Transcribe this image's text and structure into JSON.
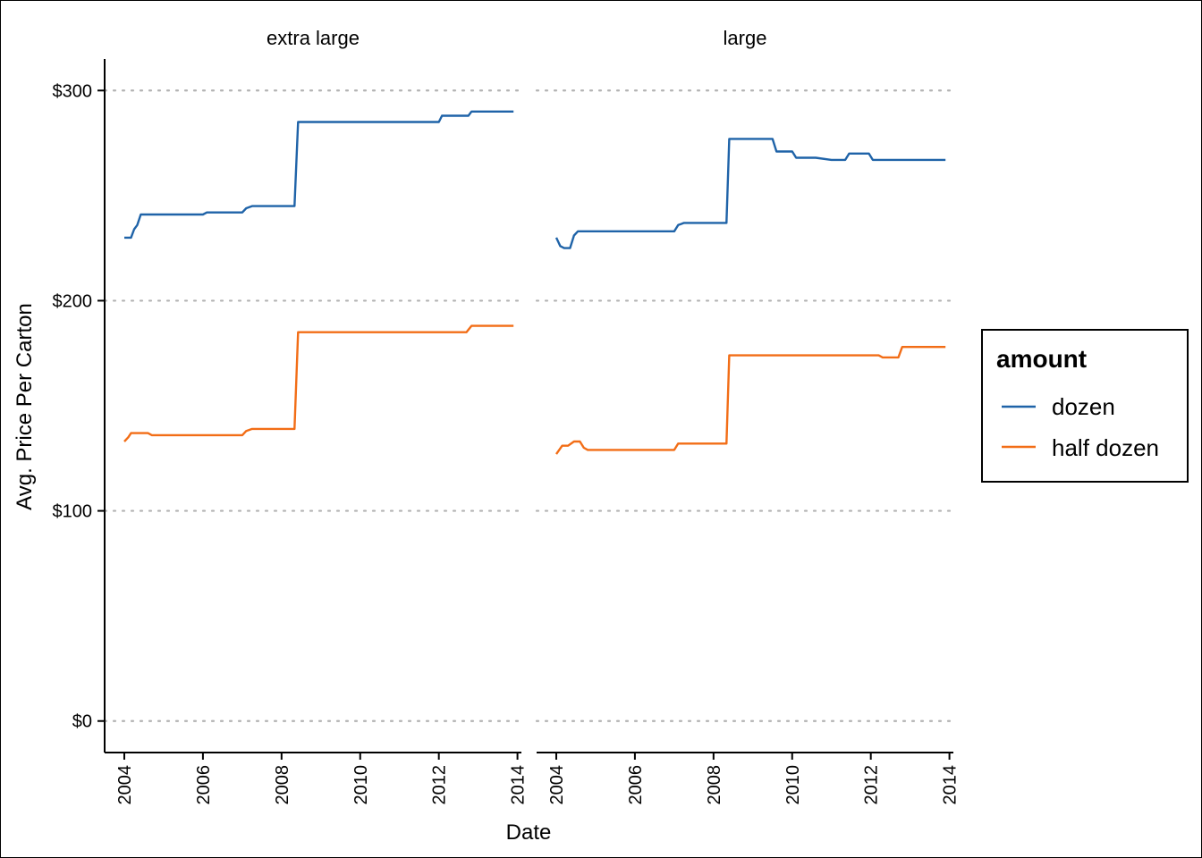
{
  "chart_data": {
    "type": "line",
    "xlabel": "Date",
    "ylabel": "Avg. Price Per Carton",
    "ylim": [
      -15,
      315
    ],
    "y_ticks": [
      {
        "value": 0,
        "label": "$0"
      },
      {
        "value": 100,
        "label": "$100"
      },
      {
        "value": 200,
        "label": "$200"
      },
      {
        "value": 300,
        "label": "$300"
      }
    ],
    "xlim": [
      2003.5,
      2014.1
    ],
    "x_ticks": [
      {
        "value": 2004,
        "label": "2004"
      },
      {
        "value": 2006,
        "label": "2006"
      },
      {
        "value": 2008,
        "label": "2008"
      },
      {
        "value": 2010,
        "label": "2010"
      },
      {
        "value": 2012,
        "label": "2012"
      },
      {
        "value": 2014,
        "label": "2014"
      }
    ],
    "grid": "horizontal dotted",
    "legend": {
      "title": "amount",
      "position": "right",
      "entries": [
        {
          "name": "dozen",
          "color": "#1f63a8"
        },
        {
          "name": "half dozen",
          "color": "#f26d16"
        }
      ]
    },
    "panels": [
      {
        "label": "extra large",
        "series": [
          {
            "name": "dozen",
            "color": "#1f63a8",
            "x": [
              2004.0,
              2004.17,
              2004.25,
              2004.33,
              2004.42,
              2005.0,
              2006.0,
              2006.1,
              2007.0,
              2007.1,
              2007.25,
              2008.0,
              2008.33,
              2008.42,
              2009.0,
              2010.0,
              2011.0,
              2012.0,
              2012.08,
              2012.2,
              2012.75,
              2012.83,
              2013.5,
              2013.9
            ],
            "y": [
              230,
              230,
              234,
              236,
              241,
              241,
              241,
              242,
              242,
              244,
              245,
              245,
              245,
              285,
              285,
              285,
              285,
              285,
              288,
              288,
              288,
              290,
              290,
              290
            ]
          },
          {
            "name": "half dozen",
            "color": "#f26d16",
            "x": [
              2004.0,
              2004.1,
              2004.17,
              2004.5,
              2004.6,
              2004.7,
              2005.0,
              2006.0,
              2007.0,
              2007.1,
              2007.25,
              2008.0,
              2008.33,
              2008.42,
              2009.0,
              2010.0,
              2011.0,
              2012.0,
              2012.7,
              2012.83,
              2013.5,
              2013.9
            ],
            "y": [
              133,
              135,
              137,
              137,
              137,
              136,
              136,
              136,
              136,
              138,
              139,
              139,
              139,
              185,
              185,
              185,
              185,
              185,
              185,
              188,
              188,
              188
            ]
          }
        ]
      },
      {
        "label": "large",
        "series": [
          {
            "name": "dozen",
            "color": "#1f63a8",
            "x": [
              2004.0,
              2004.1,
              2004.2,
              2004.35,
              2004.45,
              2004.55,
              2005.0,
              2006.0,
              2007.0,
              2007.1,
              2007.25,
              2008.0,
              2008.33,
              2008.4,
              2009.0,
              2009.5,
              2009.6,
              2010.0,
              2010.1,
              2010.6,
              2011.0,
              2011.35,
              2011.45,
              2011.95,
              2012.05,
              2013.0,
              2013.9
            ],
            "y": [
              230,
              226,
              225,
              225,
              231,
              233,
              233,
              233,
              233,
              236,
              237,
              237,
              237,
              277,
              277,
              277,
              271,
              271,
              268,
              268,
              267,
              267,
              270,
              270,
              267,
              267,
              267
            ]
          },
          {
            "name": "half dozen",
            "color": "#f26d16",
            "x": [
              2004.0,
              2004.15,
              2004.3,
              2004.45,
              2004.6,
              2004.7,
              2004.8,
              2005.0,
              2006.0,
              2007.0,
              2007.1,
              2007.25,
              2008.0,
              2008.33,
              2008.4,
              2009.0,
              2010.0,
              2011.0,
              2012.0,
              2012.2,
              2012.3,
              2012.7,
              2012.8,
              2013.5,
              2013.9
            ],
            "y": [
              127,
              131,
              131,
              133,
              133,
              130,
              129,
              129,
              129,
              129,
              132,
              132,
              132,
              132,
              174,
              174,
              174,
              174,
              174,
              174,
              173,
              173,
              178,
              178,
              178
            ]
          }
        ]
      }
    ]
  }
}
